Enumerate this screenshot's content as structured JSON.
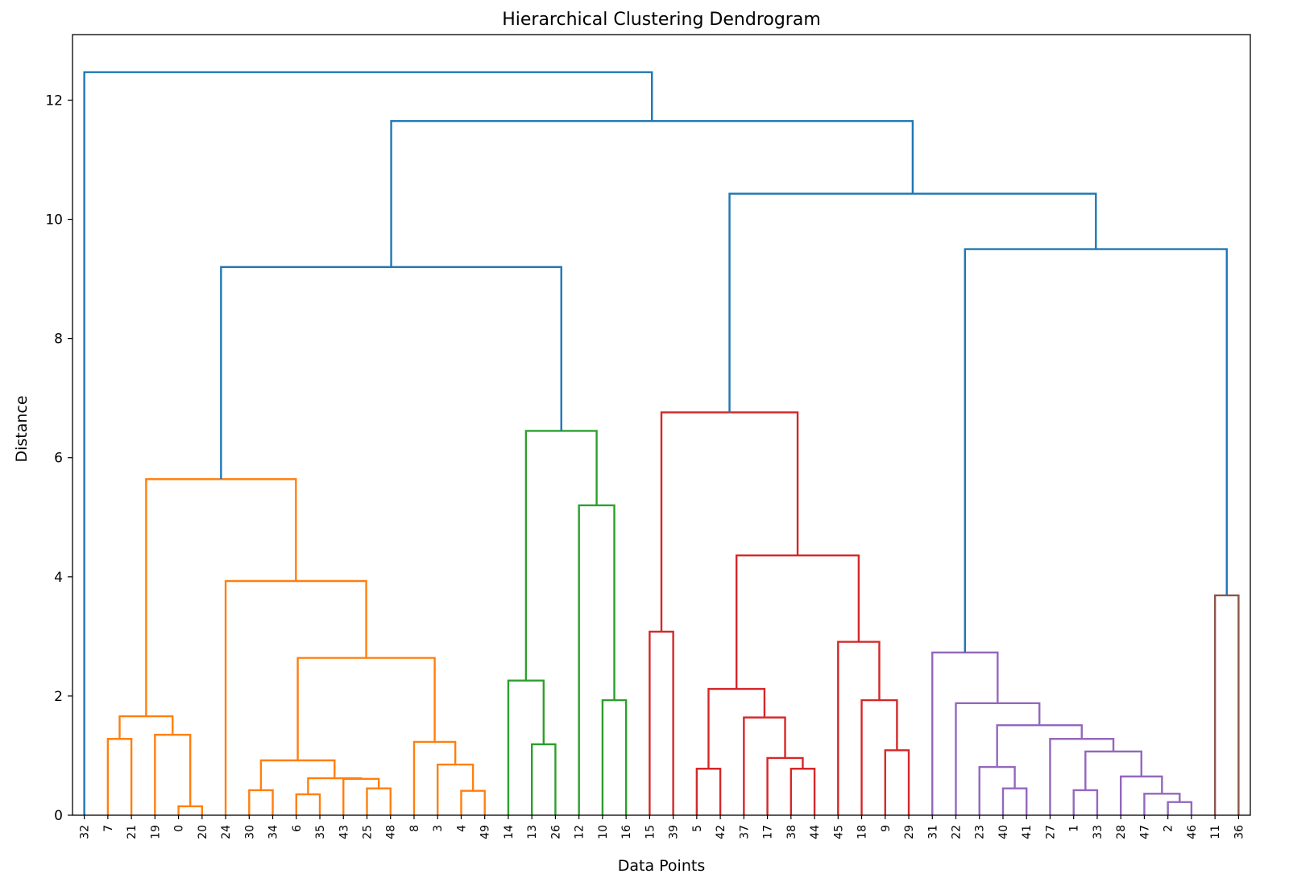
{
  "chart_data": {
    "type": "dendrogram",
    "title": "Hierarchical Clustering Dendrogram",
    "xlabel": "Data Points",
    "ylabel": "Distance",
    "ylim": [
      0,
      13.1
    ],
    "yticks": [
      0,
      2,
      4,
      6,
      8,
      10,
      12
    ],
    "grid": false,
    "colors": {
      "C0": "#1f77b4",
      "C1": "#ff7f0e",
      "C2": "#2ca02c",
      "C3": "#d62728",
      "C4": "#9467bd",
      "C5": "#8c564b"
    },
    "leaf_order": [
      "32",
      "7",
      "21",
      "19",
      "0",
      "20",
      "24",
      "30",
      "34",
      "6",
      "35",
      "43",
      "25",
      "48",
      "8",
      "3",
      "4",
      "49",
      "14",
      "13",
      "26",
      "12",
      "10",
      "16",
      "15",
      "39",
      "5",
      "42",
      "37",
      "17",
      "38",
      "44",
      "45",
      "18",
      "9",
      "29",
      "31",
      "22",
      "23",
      "40",
      "41",
      "27",
      "1",
      "33",
      "28",
      "47",
      "2",
      "46",
      "11",
      "36"
    ],
    "tree": {
      "h": 12.47,
      "c": "C0",
      "children": [
        "32",
        {
          "h": 11.65,
          "c": "C0",
          "children": [
            {
              "h": 9.2,
              "c": "C0",
              "children": [
                {
                  "h": 5.64,
                  "c": "C1",
                  "children": [
                    {
                      "h": 1.66,
                      "c": "C1",
                      "children": [
                        {
                          "h": 1.28,
                          "c": "C1",
                          "children": [
                            "7",
                            "21"
                          ]
                        },
                        {
                          "h": 1.35,
                          "c": "C1",
                          "children": [
                            "19",
                            {
                              "h": 0.15,
                              "c": "C1",
                              "children": [
                                "0",
                                "20"
                              ]
                            }
                          ]
                        }
                      ]
                    },
                    {
                      "h": 3.93,
                      "c": "C1",
                      "children": [
                        "24",
                        {
                          "h": 2.64,
                          "c": "C1",
                          "children": [
                            {
                              "h": 0.92,
                              "c": "C1",
                              "children": [
                                {
                                  "h": 0.42,
                                  "c": "C1",
                                  "children": [
                                    "30",
                                    "34"
                                  ]
                                },
                                {
                                  "h": 0.62,
                                  "c": "C1",
                                  "children": [
                                    {
                                      "h": 0.35,
                                      "c": "C1",
                                      "children": [
                                        "6",
                                        "35"
                                      ]
                                    },
                                    {
                                      "h": 0.61,
                                      "c": "C1",
                                      "children": [
                                        "43",
                                        {
                                          "h": 0.45,
                                          "c": "C1",
                                          "children": [
                                            "25",
                                            "48"
                                          ]
                                        }
                                      ]
                                    }
                                  ]
                                }
                              ]
                            },
                            {
                              "h": 1.23,
                              "c": "C1",
                              "children": [
                                "8",
                                {
                                  "h": 0.85,
                                  "c": "C1",
                                  "children": [
                                    "3",
                                    {
                                      "h": 0.41,
                                      "c": "C1",
                                      "children": [
                                        "4",
                                        "49"
                                      ]
                                    }
                                  ]
                                }
                              ]
                            }
                          ]
                        }
                      ]
                    }
                  ]
                },
                {
                  "h": 6.45,
                  "c": "C2",
                  "children": [
                    {
                      "h": 2.26,
                      "c": "C2",
                      "children": [
                        "14",
                        {
                          "h": 1.19,
                          "c": "C2",
                          "children": [
                            "13",
                            "26"
                          ]
                        }
                      ]
                    },
                    {
                      "h": 5.2,
                      "c": "C2",
                      "children": [
                        "12",
                        {
                          "h": 1.93,
                          "c": "C2",
                          "children": [
                            "10",
                            "16"
                          ]
                        }
                      ]
                    }
                  ]
                }
              ]
            },
            {
              "h": 10.43,
              "c": "C0",
              "children": [
                {
                  "h": 6.76,
                  "c": "C3",
                  "children": [
                    {
                      "h": 3.08,
                      "c": "C3",
                      "children": [
                        "15",
                        "39"
                      ]
                    },
                    {
                      "h": 4.36,
                      "c": "C3",
                      "children": [
                        {
                          "h": 2.12,
                          "c": "C3",
                          "children": [
                            {
                              "h": 0.78,
                              "c": "C3",
                              "children": [
                                "5",
                                "42"
                              ]
                            },
                            {
                              "h": 1.64,
                              "c": "C3",
                              "children": [
                                "37",
                                {
                                  "h": 0.96,
                                  "c": "C3",
                                  "children": [
                                    "17",
                                    {
                                      "h": 0.78,
                                      "c": "C3",
                                      "children": [
                                        "38",
                                        "44"
                                      ]
                                    }
                                  ]
                                }
                              ]
                            }
                          ]
                        },
                        {
                          "h": 2.91,
                          "c": "C3",
                          "children": [
                            "45",
                            {
                              "h": 1.93,
                              "c": "C3",
                              "children": [
                                "18",
                                {
                                  "h": 1.09,
                                  "c": "C3",
                                  "children": [
                                    "9",
                                    "29"
                                  ]
                                }
                              ]
                            }
                          ]
                        }
                      ]
                    }
                  ]
                },
                {
                  "h": 9.5,
                  "c": "C0",
                  "children": [
                    {
                      "h": 2.73,
                      "c": "C4",
                      "children": [
                        "31",
                        {
                          "h": 1.88,
                          "c": "C4",
                          "children": [
                            "22",
                            {
                              "h": 1.51,
                              "c": "C4",
                              "children": [
                                {
                                  "h": 0.81,
                                  "c": "C4",
                                  "children": [
                                    "23",
                                    {
                                      "h": 0.45,
                                      "c": "C4",
                                      "children": [
                                        "40",
                                        "41"
                                      ]
                                    }
                                  ]
                                },
                                {
                                  "h": 1.28,
                                  "c": "C4",
                                  "children": [
                                    "27",
                                    {
                                      "h": 1.07,
                                      "c": "C4",
                                      "children": [
                                        {
                                          "h": 0.42,
                                          "c": "C4",
                                          "children": [
                                            "1",
                                            "33"
                                          ]
                                        },
                                        {
                                          "h": 0.65,
                                          "c": "C4",
                                          "children": [
                                            "28",
                                            {
                                              "h": 0.36,
                                              "c": "C4",
                                              "children": [
                                                "47",
                                                {
                                                  "h": 0.22,
                                                  "c": "C4",
                                                  "children": [
                                                    "2",
                                                    "46"
                                                  ]
                                                }
                                              ]
                                            }
                                          ]
                                        }
                                      ]
                                    }
                                  ]
                                }
                              ]
                            }
                          ]
                        }
                      ]
                    },
                    {
                      "h": 3.69,
                      "c": "C5",
                      "children": [
                        "11",
                        "36"
                      ]
                    }
                  ]
                }
              ]
            }
          ]
        }
      ]
    }
  }
}
